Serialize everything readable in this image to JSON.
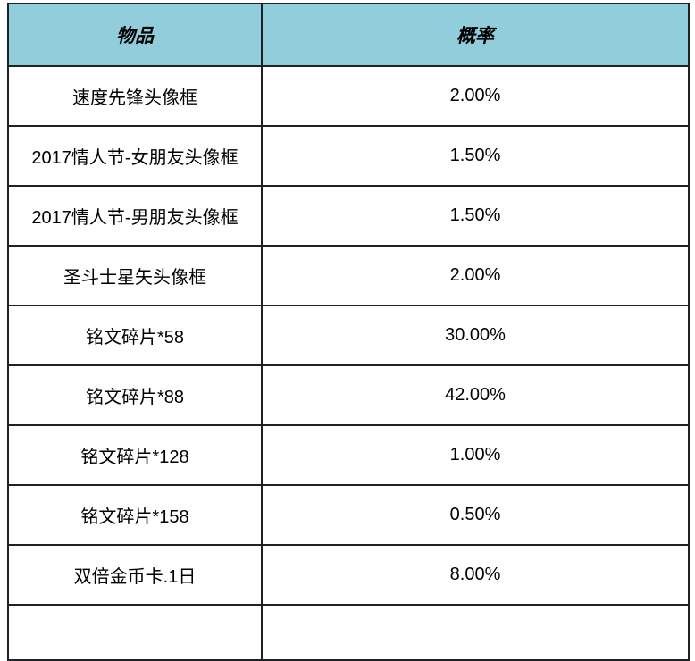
{
  "table": {
    "header_bg": "#92CDDC",
    "border_color": "#1e2226",
    "columns": [
      {
        "label": "物品"
      },
      {
        "label": "概率"
      }
    ],
    "rows": [
      {
        "item": "速度先锋头像框",
        "probability": "2.00%"
      },
      {
        "item": "2017情人节-女朋友头像框",
        "probability": "1.50%"
      },
      {
        "item": "2017情人节-男朋友头像框",
        "probability": "1.50%"
      },
      {
        "item": "圣斗士星矢头像框",
        "probability": "2.00%"
      },
      {
        "item": "铭文碎片*58",
        "probability": "30.00%"
      },
      {
        "item": "铭文碎片*88",
        "probability": "42.00%"
      },
      {
        "item": "铭文碎片*128",
        "probability": "1.00%"
      },
      {
        "item": "铭文碎片*158",
        "probability": "0.50%"
      },
      {
        "item": "双倍金币卡.1日",
        "probability": "8.00%"
      }
    ]
  },
  "chart_data": {
    "type": "table",
    "title": "",
    "columns": [
      "物品",
      "概率"
    ],
    "categories": [
      "速度先锋头像框",
      "2017情人节-女朋友头像框",
      "2017情人节-男朋友头像框",
      "圣斗士星矢头像框",
      "铭文碎片*58",
      "铭文碎片*88",
      "铭文碎片*128",
      "铭文碎片*158",
      "双倍金币卡.1日"
    ],
    "values": [
      2.0,
      1.5,
      1.5,
      2.0,
      30.0,
      42.0,
      1.0,
      0.5,
      8.0
    ],
    "value_unit": "%"
  }
}
